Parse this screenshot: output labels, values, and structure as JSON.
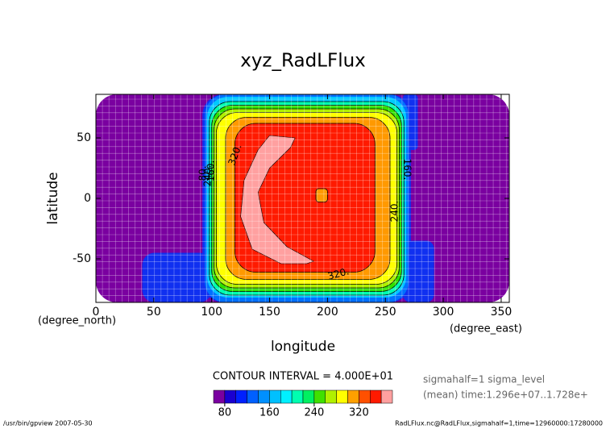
{
  "chart_data": {
    "type": "contour",
    "title": "xyz_RadLFlux",
    "xlabel": "longitude",
    "ylabel": "latitude",
    "xunit": "(degree_east)",
    "yunit": "(degree_north)",
    "xlim": [
      0,
      357
    ],
    "ylim": [
      -86,
      86
    ],
    "xticks": [
      0,
      50,
      100,
      150,
      200,
      250,
      300,
      350
    ],
    "yticks": [
      -50,
      0,
      50
    ],
    "grid": true,
    "contour_interval": "CONTOUR INTERVAL = 4.000E+01",
    "contour_labels": [
      {
        "value": 320,
        "label": "320."
      },
      {
        "value": 240,
        "label": "240."
      },
      {
        "value": 160,
        "label": "160."
      },
      {
        "value": 80,
        "label": "80."
      },
      {
        "value": 320,
        "label": "320."
      },
      {
        "value": 240,
        "label": "240."
      },
      {
        "value": 160,
        "label": "160."
      }
    ],
    "regions": [
      {
        "value": 40,
        "color": "#7a00a0",
        "lon": [
          0,
          357
        ],
        "lat": [
          -86,
          86
        ]
      },
      {
        "value": 60,
        "color": "#1030f0",
        "lon": [
          92,
          272
        ],
        "lat": [
          -86,
          86
        ]
      },
      {
        "value": 60,
        "color": "#1030f0",
        "lon": [
          40,
          100
        ],
        "lat": [
          -86,
          -45
        ]
      },
      {
        "value": 60,
        "color": "#1030f0",
        "lon": [
          265,
          292
        ],
        "lat": [
          -86,
          -35
        ]
      },
      {
        "value": 60,
        "color": "#1030f0",
        "lon": [
          265,
          278
        ],
        "lat": [
          40,
          86
        ]
      },
      {
        "value": 80,
        "color": "#0070ff",
        "lon": [
          94,
          270
        ],
        "lat": [
          -86,
          86
        ]
      },
      {
        "value": 100,
        "color": "#00c8ff",
        "lon": [
          96,
          268
        ],
        "lat": [
          -82,
          84
        ]
      },
      {
        "value": 120,
        "color": "#00ffb0",
        "lon": [
          98,
          266
        ],
        "lat": [
          -80,
          80
        ]
      },
      {
        "value": 160,
        "color": "#30e000",
        "lon": [
          100,
          264
        ],
        "lat": [
          -77,
          77
        ]
      },
      {
        "value": 200,
        "color": "#b0f000",
        "lon": [
          102,
          262
        ],
        "lat": [
          -74,
          74
        ]
      },
      {
        "value": 240,
        "color": "#ffff00",
        "lon": [
          104,
          260
        ],
        "lat": [
          -71,
          71
        ]
      },
      {
        "value": 280,
        "color": "#ff9900",
        "lon": [
          112,
          254
        ],
        "lat": [
          -67,
          67
        ]
      },
      {
        "value": 320,
        "color": "#ff1a00",
        "lon": [
          120,
          241
        ],
        "lat": [
          -61,
          62
        ]
      },
      {
        "value": 280,
        "color": "#ff9900",
        "lon": [
          190,
          200
        ],
        "lat": [
          -3,
          8
        ]
      }
    ],
    "peak": {
      "value": 340,
      "color": "#ffa0a0",
      "lon": [
        150,
        172,
        168,
        150,
        140,
        145,
        165,
        188,
        182,
        160,
        135,
        125,
        128,
        140
      ],
      "lat": [
        52,
        50,
        42,
        25,
        5,
        -20,
        -40,
        -52,
        -54,
        -54,
        -42,
        -15,
        15,
        40
      ]
    },
    "colorbar": {
      "bounds": [
        60,
        80,
        100,
        120,
        140,
        160,
        180,
        200,
        220,
        240,
        260,
        280,
        300,
        320,
        340,
        360,
        380
      ],
      "colors": [
        "#7a00a0",
        "#1a00d0",
        "#0020ff",
        "#0060ff",
        "#0090ff",
        "#00c0ff",
        "#00f0ff",
        "#00ffb0",
        "#00f060",
        "#40e000",
        "#b0f000",
        "#ffff00",
        "#ffa000",
        "#ff5000",
        "#ff1a00",
        "#ffa0a0"
      ],
      "ticks": [
        80,
        160,
        240,
        320
      ]
    },
    "notes": [
      "sigmahalf=1 sigma_level",
      "(mean) time:1.296e+07..1.728e+"
    ],
    "footer_left": "/usr/bin/gpview  2007-05-30",
    "footer_right": "RadLFlux.nc@RadLFlux,sigmahalf=1,time=12960000:17280000"
  }
}
